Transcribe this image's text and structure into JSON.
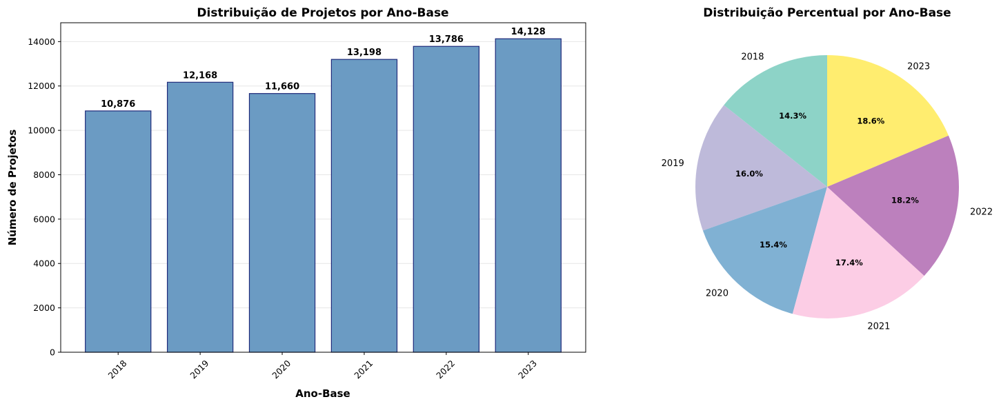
{
  "chart_data": [
    {
      "type": "bar",
      "title": "Distribuição de Projetos por Ano-Base",
      "xlabel": "Ano-Base",
      "ylabel": "Número de Projetos",
      "categories": [
        "2018",
        "2019",
        "2020",
        "2021",
        "2022",
        "2023"
      ],
      "values": [
        10876,
        12168,
        11660,
        13198,
        13786,
        14128
      ],
      "value_labels": [
        "10,876",
        "12,168",
        "11,660",
        "13,198",
        "13,786",
        "14,128"
      ],
      "yticks": [
        0,
        2000,
        4000,
        6000,
        8000,
        10000,
        12000,
        14000
      ],
      "ytick_labels": [
        "0",
        "2000",
        "4000",
        "6000",
        "8000",
        "10000",
        "12000",
        "14000"
      ],
      "ylim": [
        0,
        14850
      ],
      "grid": "horizontal",
      "bar_color": "#6b9bc3",
      "bar_edge_color": "#1f2a7a"
    },
    {
      "type": "pie",
      "title": "Distribuição Percentual por Ano-Base",
      "labels": [
        "2018",
        "2019",
        "2020",
        "2021",
        "2022",
        "2023"
      ],
      "values": [
        10876,
        12168,
        11660,
        13198,
        13786,
        14128
      ],
      "percent_labels": [
        "14.3%",
        "16.0%",
        "15.4%",
        "17.4%",
        "18.2%",
        "18.6%"
      ],
      "colors": [
        "#8dd3c7",
        "#bebada",
        "#80b1d3",
        "#fccde5",
        "#bc80bd",
        "#ffed6f"
      ],
      "start_angle": "90deg, counterclockwise"
    }
  ]
}
